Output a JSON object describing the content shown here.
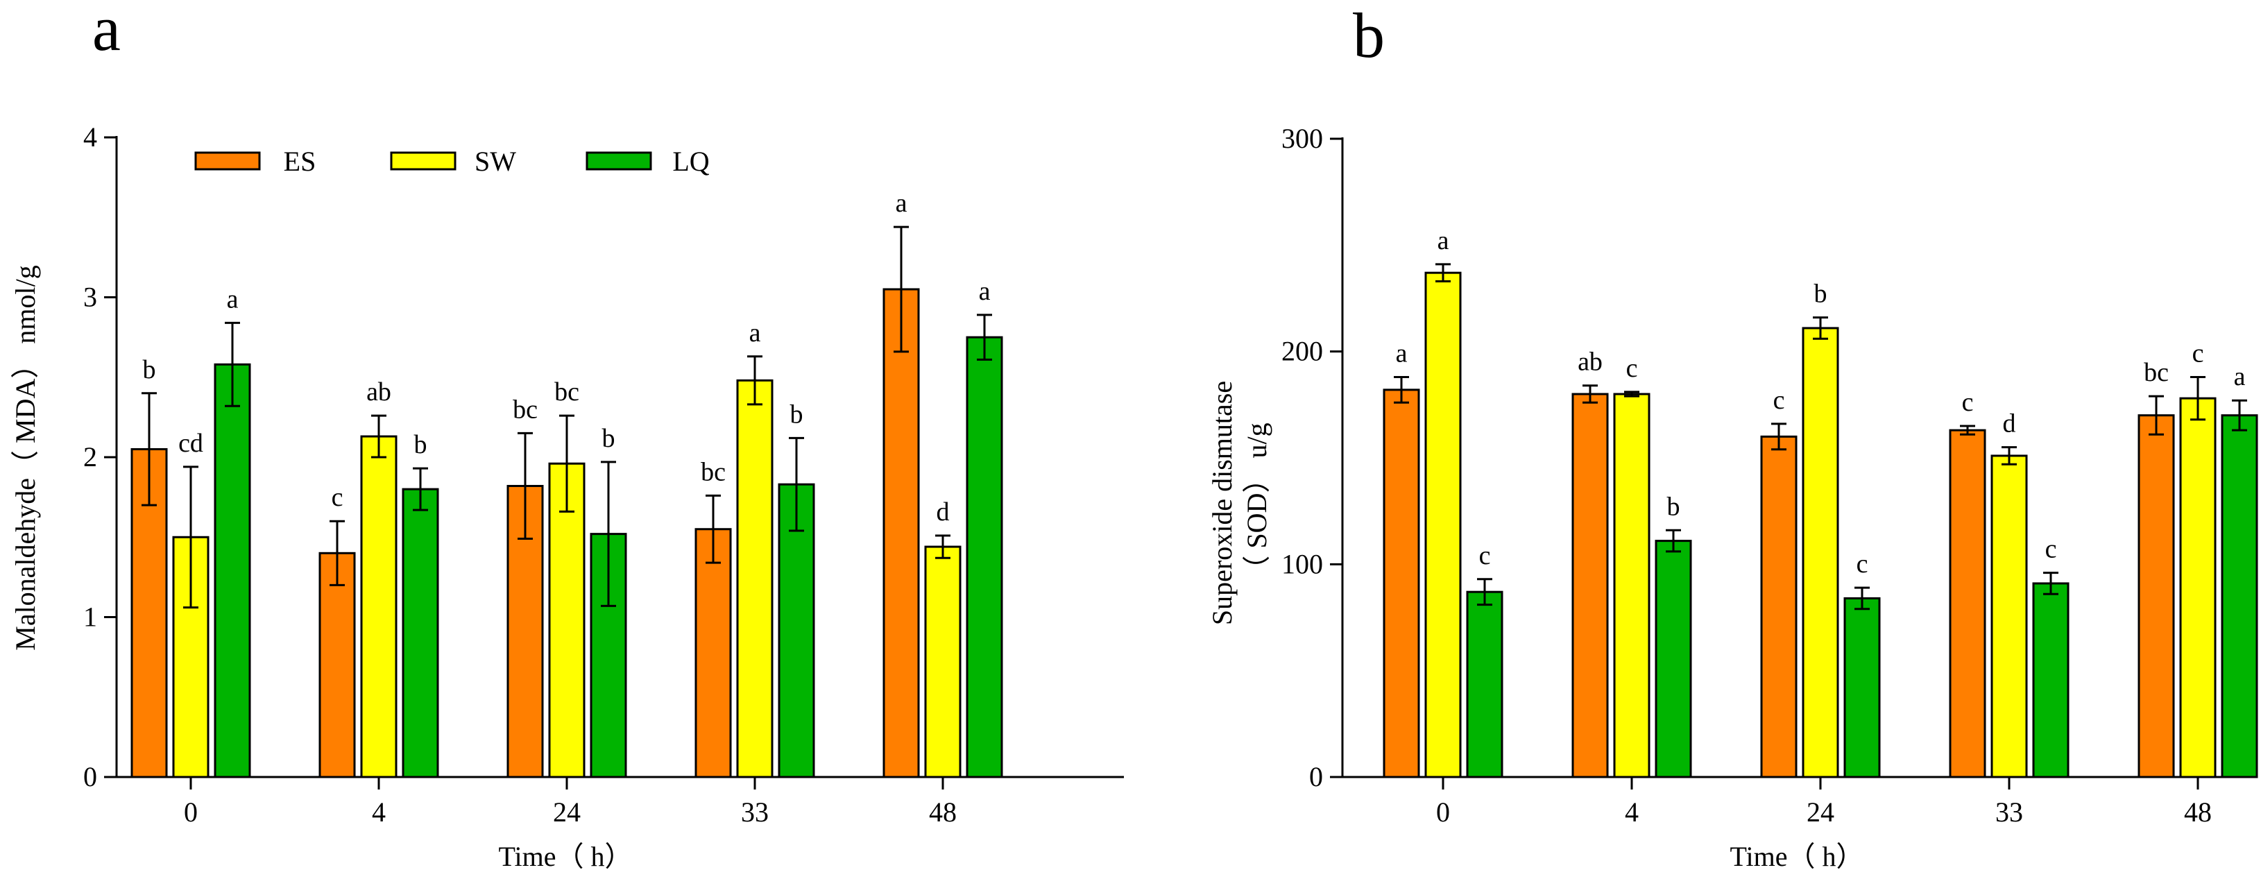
{
  "chart_data": [
    {
      "panel": "a",
      "type": "bar",
      "title": "",
      "xlabel": "Time（ h）",
      "ylabel": "Malonaldehyde（ MDA） nmol/g",
      "categories": [
        "0",
        "4",
        "24",
        "33",
        "48"
      ],
      "ylim": [
        0,
        4
      ],
      "yticks": [
        0,
        1,
        2,
        3,
        4
      ],
      "legend": {
        "placement": "top-left",
        "entries": [
          "ES",
          "SW",
          "LQ"
        ]
      },
      "series": [
        {
          "name": "ES",
          "color": "#ff7f00",
          "values": [
            2.05,
            1.4,
            1.82,
            1.55,
            3.05
          ],
          "errors": [
            0.35,
            0.2,
            0.33,
            0.21,
            0.39
          ],
          "labels": [
            "b",
            "c",
            "bc",
            "bc",
            "a"
          ]
        },
        {
          "name": "SW",
          "color": "#ffff00",
          "values": [
            1.5,
            2.13,
            1.96,
            2.48,
            1.44
          ],
          "errors": [
            0.44,
            0.13,
            0.3,
            0.15,
            0.07
          ],
          "labels": [
            "cd",
            "ab",
            "bc",
            "a",
            "d"
          ]
        },
        {
          "name": "LQ",
          "color": "#00b400",
          "values": [
            2.58,
            1.8,
            1.52,
            1.83,
            2.75
          ],
          "errors": [
            0.26,
            0.13,
            0.45,
            0.29,
            0.14
          ],
          "labels": [
            "a",
            "b",
            "b",
            "b",
            "a"
          ]
        }
      ]
    },
    {
      "panel": "b",
      "type": "bar",
      "title": "",
      "xlabel": "Time（ h）",
      "ylabel_lines": [
        "Superoxide dismutase",
        "（ SOD） u/g"
      ],
      "categories": [
        "0",
        "4",
        "24",
        "33",
        "48"
      ],
      "ylim": [
        0,
        300
      ],
      "yticks": [
        0,
        100,
        200,
        300
      ],
      "series": [
        {
          "name": "ES",
          "color": "#ff7f00",
          "values": [
            182,
            180,
            160,
            163,
            170
          ],
          "errors": [
            6,
            4,
            6,
            2,
            9
          ],
          "labels": [
            "a",
            "ab",
            "c",
            "c",
            "bc"
          ]
        },
        {
          "name": "SW",
          "color": "#ffff00",
          "values": [
            237,
            180,
            211,
            151,
            178
          ],
          "errors": [
            4,
            1,
            5,
            4,
            10
          ],
          "labels": [
            "a",
            "c",
            "b",
            "d",
            "c"
          ]
        },
        {
          "name": "LQ",
          "color": "#00b400",
          "values": [
            87,
            111,
            84,
            91,
            170
          ],
          "errors": [
            6,
            5,
            5,
            5,
            7
          ],
          "labels": [
            "c",
            "b",
            "c",
            "c",
            "a"
          ]
        }
      ]
    }
  ]
}
